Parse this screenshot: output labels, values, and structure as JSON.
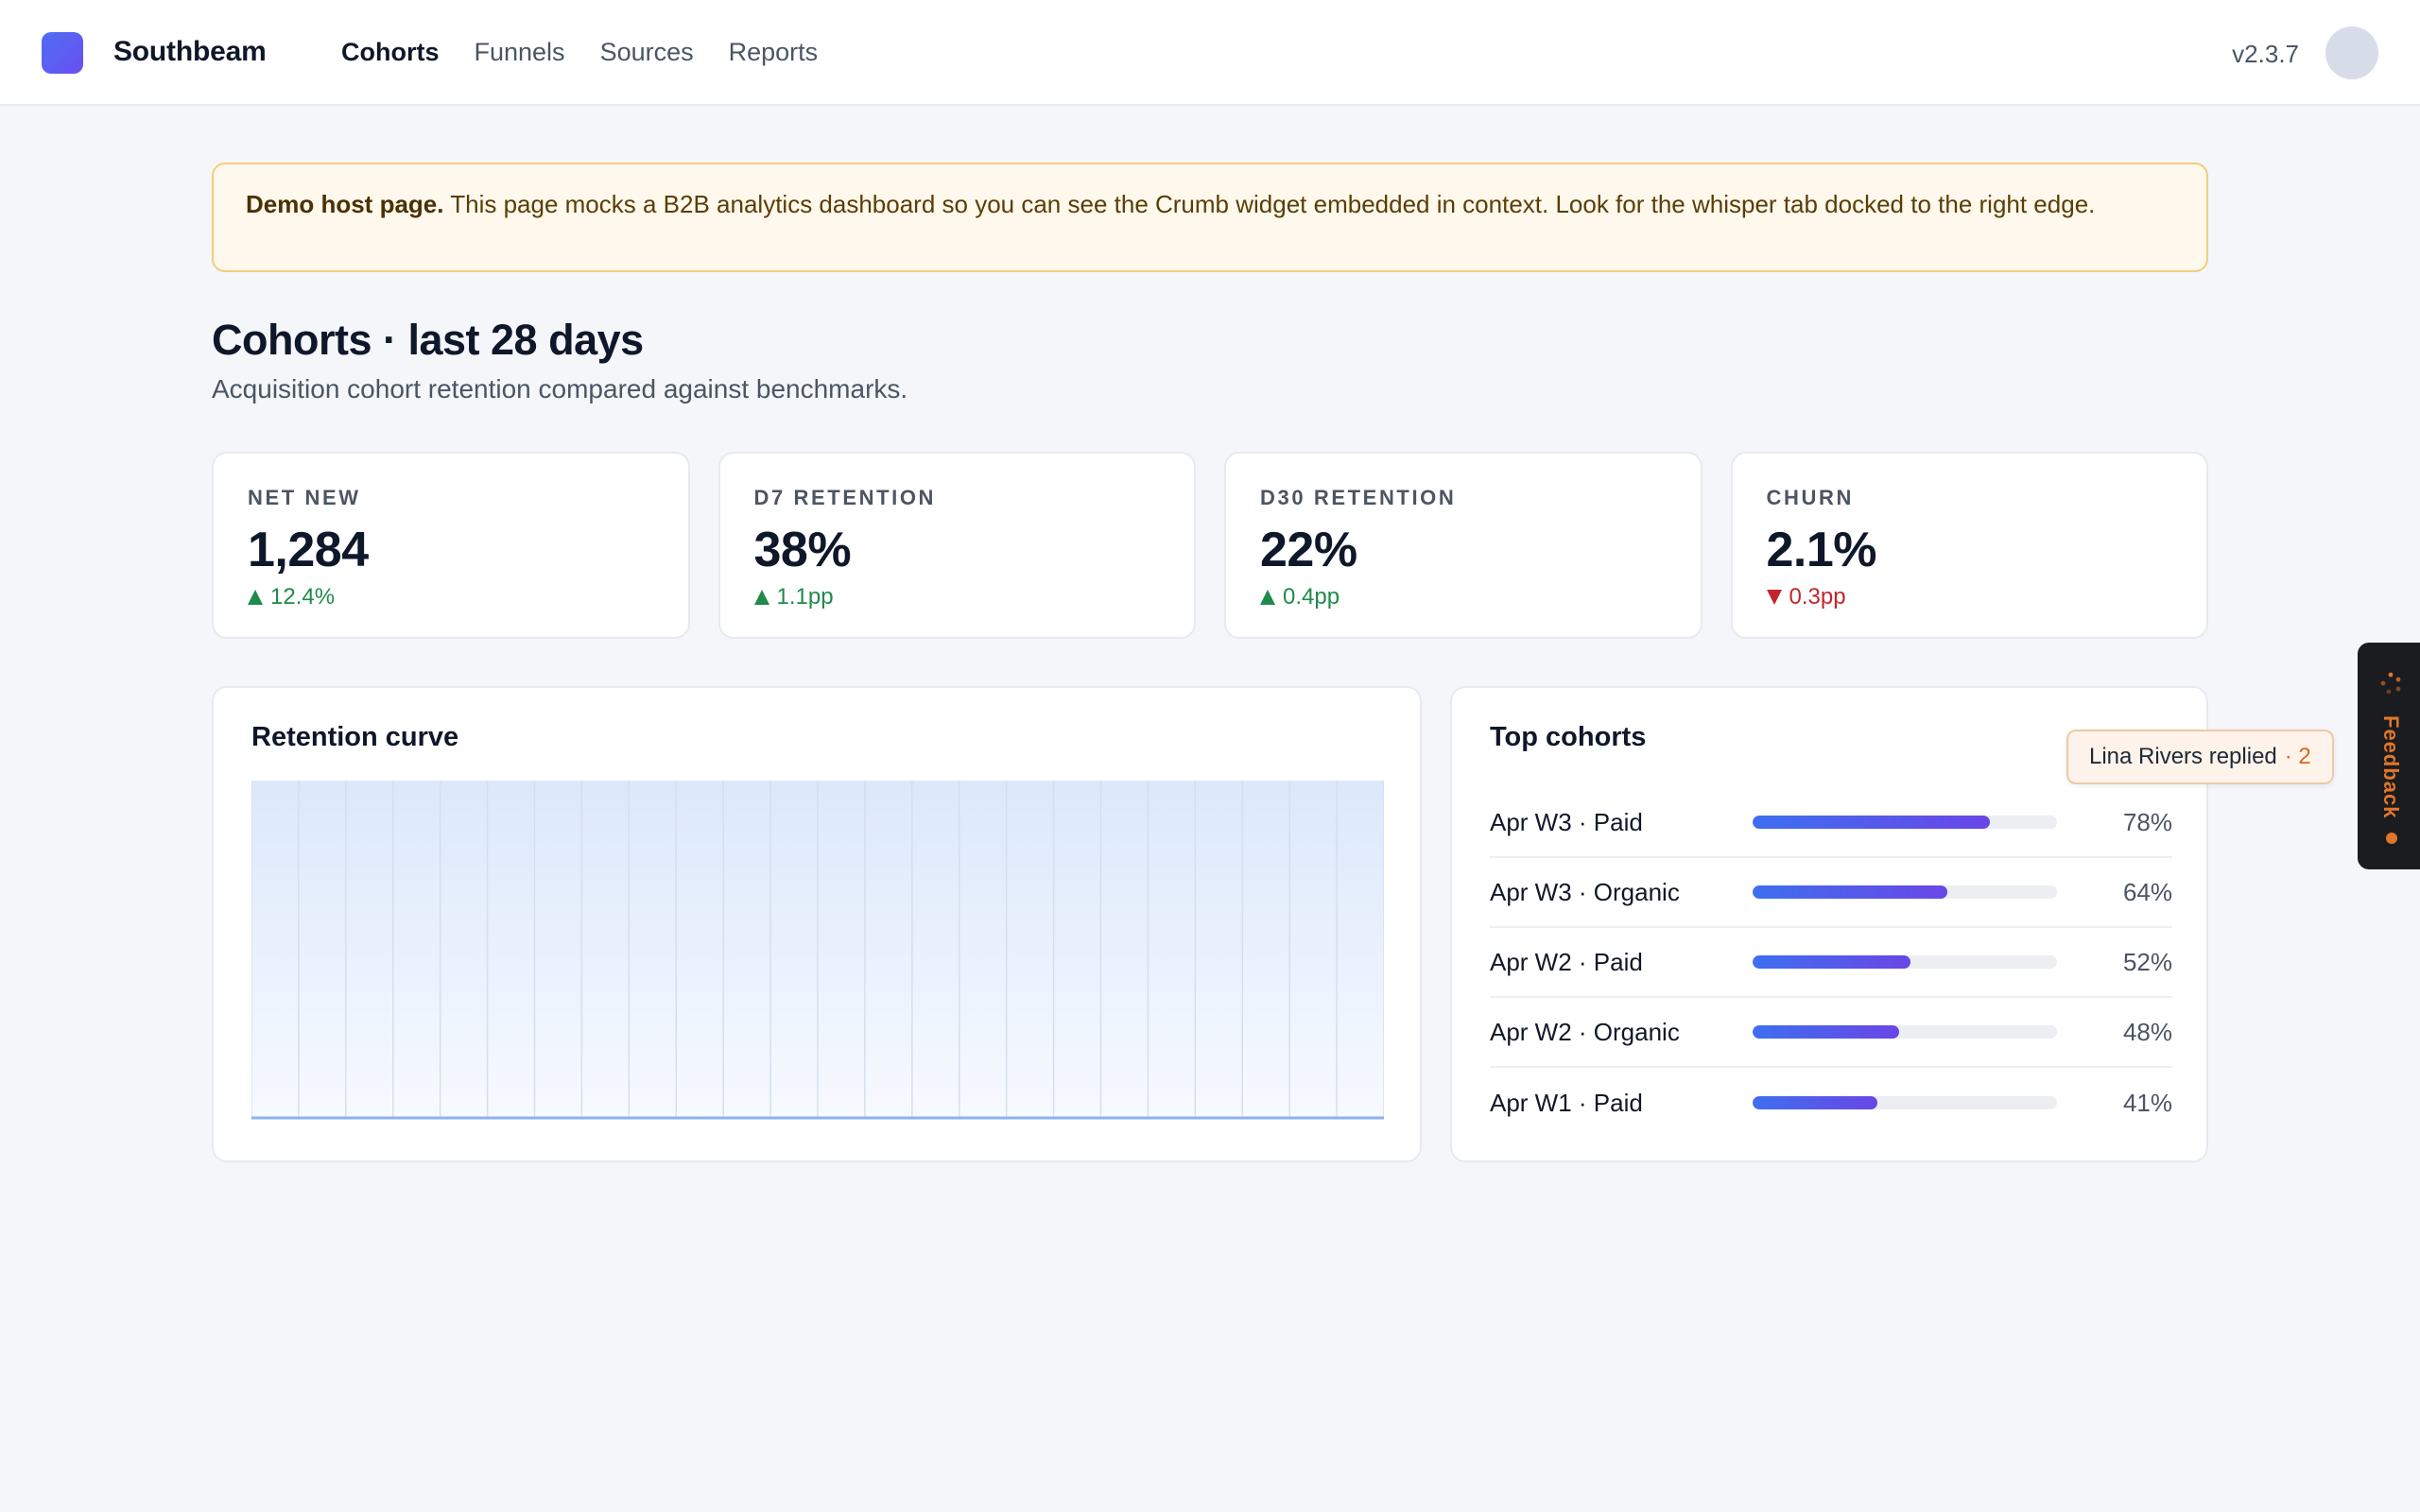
{
  "app": {
    "brand": "Southbeam",
    "version": "v2.3.7"
  },
  "nav": {
    "items": [
      {
        "label": "Cohorts",
        "active": true
      },
      {
        "label": "Funnels",
        "active": false
      },
      {
        "label": "Sources",
        "active": false
      },
      {
        "label": "Reports",
        "active": false
      }
    ]
  },
  "banner": {
    "strong": "Demo host page.",
    "text": " This page mocks a B2B analytics dashboard so you can see the Crumb widget embedded in context. Look for the whisper tab docked to the right edge."
  },
  "page": {
    "title": "Cohorts · last 28 days",
    "subtitle": "Acquisition cohort retention compared against benchmarks."
  },
  "kpis": [
    {
      "label": "NET NEW",
      "value": "1,284",
      "delta": "12.4%",
      "direction": "up"
    },
    {
      "label": "D7 RETENTION",
      "value": "38%",
      "delta": "1.1pp",
      "direction": "up"
    },
    {
      "label": "D30 RETENTION",
      "value": "22%",
      "delta": "0.4pp",
      "direction": "up"
    },
    {
      "label": "CHURN",
      "value": "2.1%",
      "delta": "0.3pp",
      "direction": "down"
    }
  ],
  "retention": {
    "title": "Retention curve"
  },
  "chart_data": {
    "type": "area",
    "title": "Retention curve",
    "gridlines_x": 24,
    "grid": true,
    "series": []
  },
  "top_cohorts": {
    "title": "Top cohorts",
    "items": [
      {
        "name": "Apr W3 · Paid",
        "pct": "78%",
        "value": 78
      },
      {
        "name": "Apr W3 · Organic",
        "pct": "64%",
        "value": 64
      },
      {
        "name": "Apr W2 · Paid",
        "pct": "52%",
        "value": 52
      },
      {
        "name": "Apr W2 · Organic",
        "pct": "48%",
        "value": 48
      },
      {
        "name": "Apr W1 · Paid",
        "pct": "41%",
        "value": 41
      }
    ]
  },
  "feedback": {
    "tab_label": "Feedback",
    "reply_text": "Lina Rivers replied",
    "reply_count": "· 2"
  },
  "colors": {
    "accent": "#4f6df5",
    "up": "#1f8a4c",
    "down": "#c0262d",
    "feedback": "#e0762a"
  }
}
